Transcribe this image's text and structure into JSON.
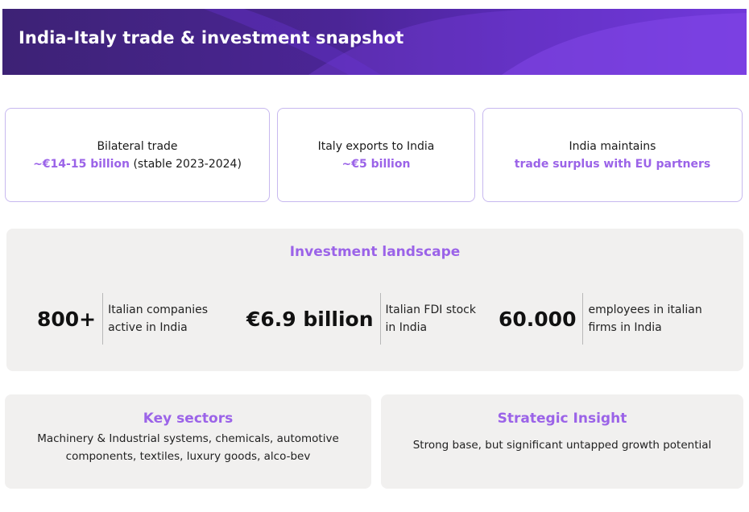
{
  "header": {
    "title": "India-Italy trade & investment snapshot"
  },
  "trade_cards": [
    {
      "label": "Bilateral trade",
      "highlight": "~€14-15 billion",
      "note": "(stable 2023-2024)"
    },
    {
      "label": "Italy exports to India",
      "highlight": "~€5 billion"
    },
    {
      "label": "India maintains",
      "highlight": "trade surplus with EU partners"
    }
  ],
  "investment": {
    "title": "Investment landscape",
    "stats": [
      {
        "value": "800+",
        "line1": "Italian companies",
        "line2": "active in India"
      },
      {
        "value": "€6.9 billion",
        "line1": "Italian FDI stock",
        "line2": "in India"
      },
      {
        "value": "60.000",
        "line1": "employees in italian",
        "line2": "firms in India"
      }
    ]
  },
  "key_sectors": {
    "title": "Key sectors",
    "text": "Machinery & Industrial systems, chemicals, automotive components, textiles, luxury goods, alco-bev"
  },
  "strategic_insight": {
    "title": "Strategic Insight",
    "text": "Strong base, but significant untapped growth potential"
  },
  "colors": {
    "accent": "#9b63e8",
    "banner_dark": "#3d2275",
    "banner_light": "#6a35d6",
    "card_border": "#c7b8ef",
    "panel_bg": "#f1f0ef"
  }
}
